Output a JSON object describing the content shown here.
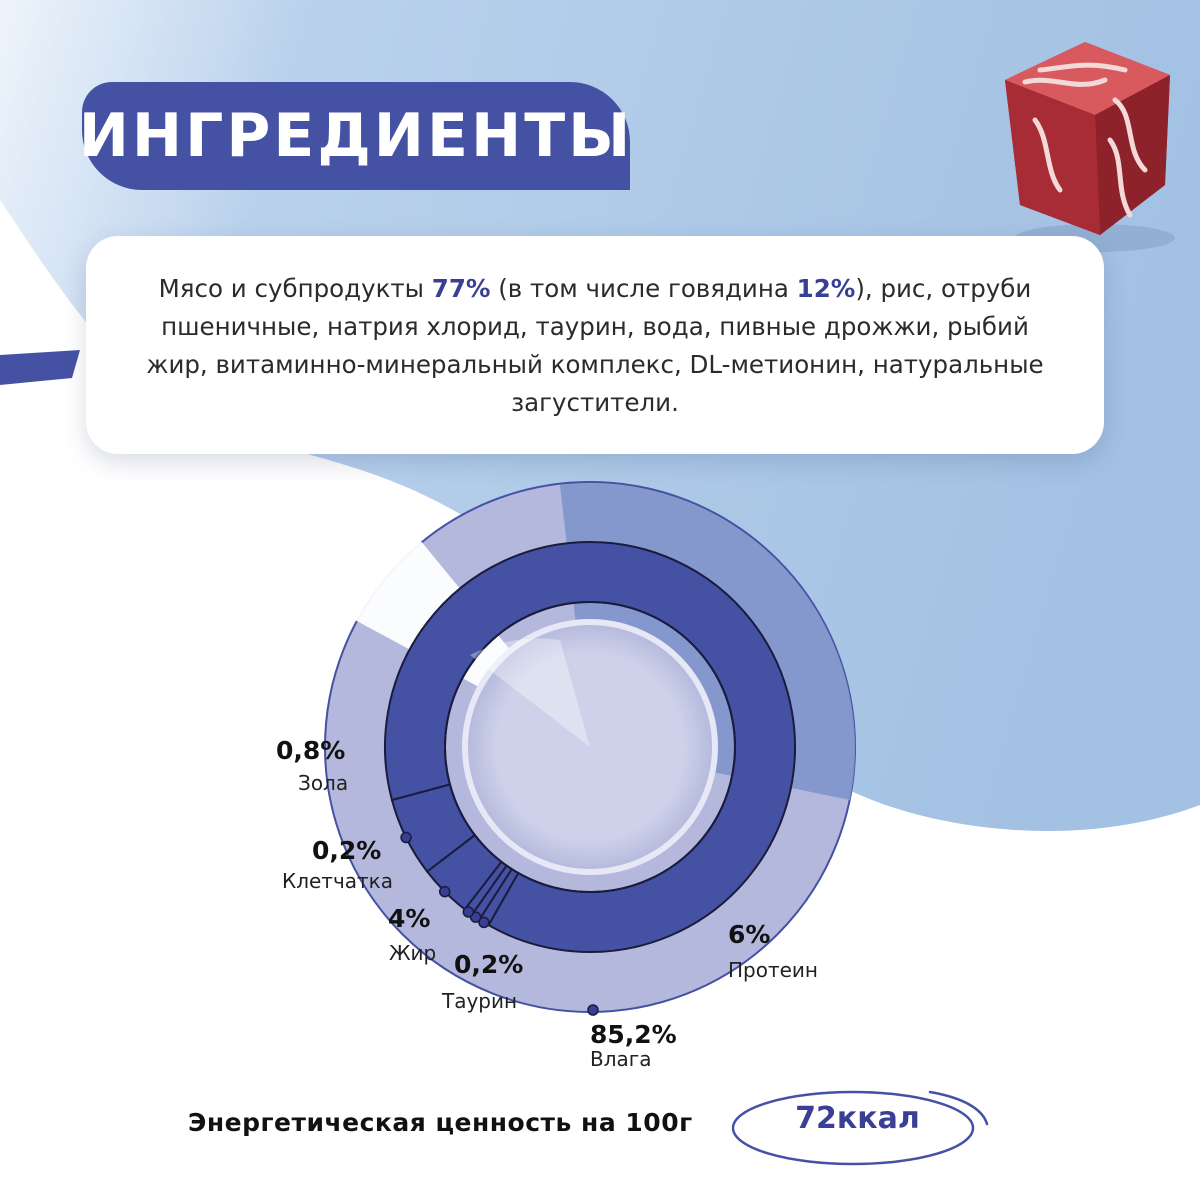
{
  "header": {
    "title": "ИНГРЕДИЕНТЫ"
  },
  "ingredients": {
    "part1": "Мясо и субпродукты ",
    "meat_pct": "77%",
    "part2": " (в том числе говядина ",
    "beef_pct": "12%",
    "part3": "), рис, отруби пшеничные, натрия хлорид, таурин, вода, пивные дрожжи, рыбий жир, витаминно-минеральный комплекс, DL-метионин, натуральные загустители."
  },
  "chart_data": {
    "type": "pie",
    "slices": [
      {
        "label": "Влага",
        "value": 85.2,
        "value_text": "85,2%"
      },
      {
        "label": "Протеин",
        "value": 6,
        "value_text": "6%"
      },
      {
        "label": "Жир",
        "value": 4,
        "value_text": "4%"
      },
      {
        "label": "Зола",
        "value": 0.8,
        "value_text": "0,8%"
      },
      {
        "label": "Клетчатка",
        "value": 0.2,
        "value_text": "0,2%"
      },
      {
        "label": "Таурин",
        "value": 0.2,
        "value_text": "0,2%"
      }
    ]
  },
  "energy": {
    "label": "Энергетическая ценность на 100г",
    "value": "72ккал"
  },
  "colors": {
    "primary": "#4552a3",
    "light_blue": "#a7c3e3",
    "lavender": "#b3b8dc",
    "text_highlight": "#3a3f96"
  }
}
